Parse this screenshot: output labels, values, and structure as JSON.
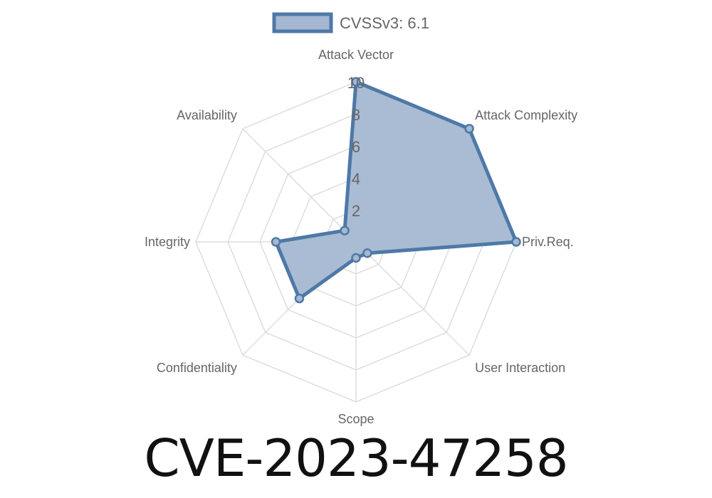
{
  "chart_data": {
    "type": "radar",
    "title": "CVE-2023-47258",
    "categories": [
      "Attack Vector",
      "Attack Complexity",
      "Priv.Req.",
      "User Interaction",
      "Scope",
      "Confidentiality",
      "Integrity",
      "Availability"
    ],
    "series": [
      {
        "name": "CVSSv3: 6.1",
        "values": [
          10,
          10,
          10,
          1,
          1,
          5,
          5,
          1
        ]
      }
    ],
    "rlim": [
      0,
      10
    ],
    "ticks": [
      2,
      4,
      6,
      8,
      10
    ],
    "grid": true,
    "legend": "top",
    "colors": {
      "line": "#4e79a7",
      "fill": "#a5b8d1",
      "grid": "#dddddd",
      "label": "#666666"
    }
  }
}
